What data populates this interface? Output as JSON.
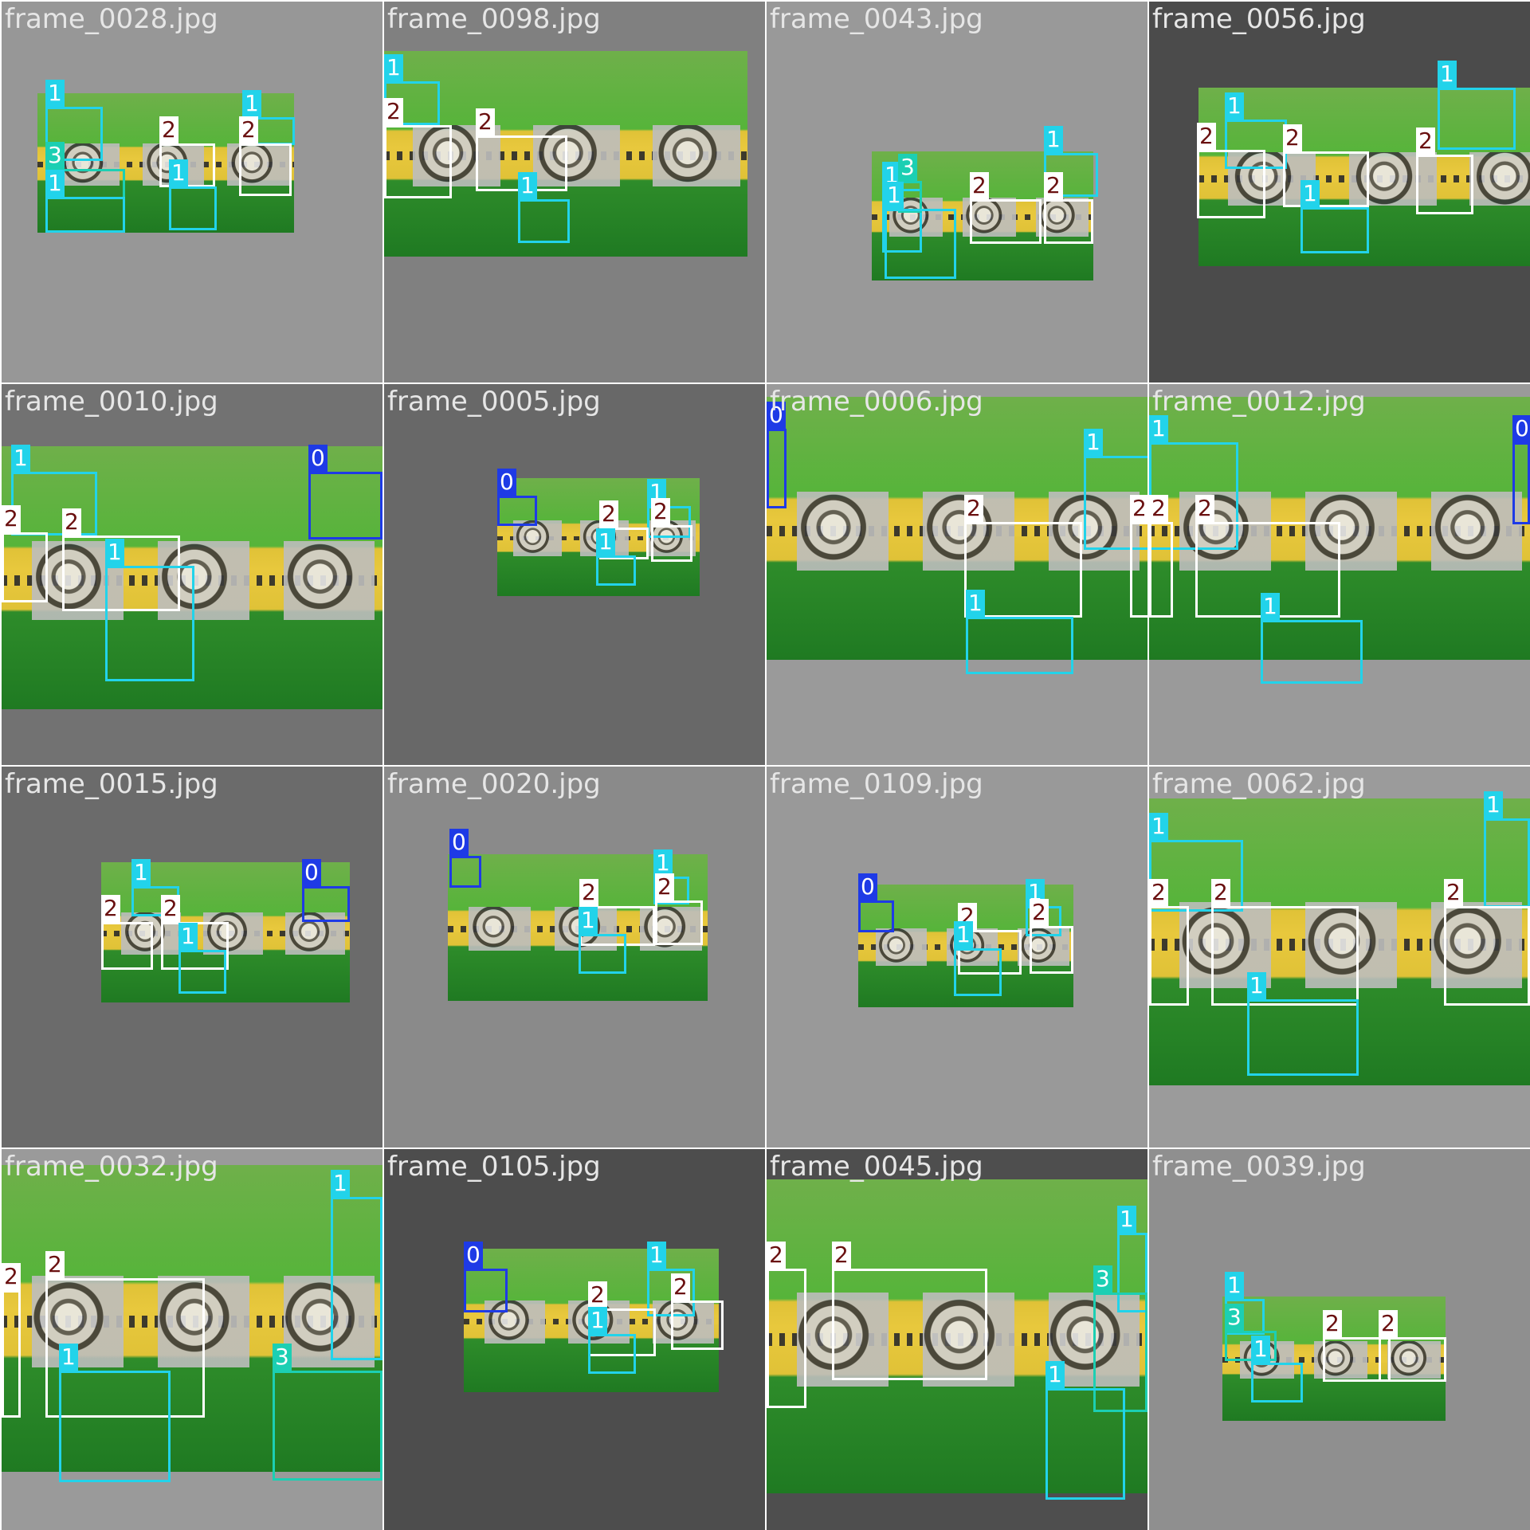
{
  "colors": {
    "class_0": "#1e3ae6",
    "class_1": "#22d3ea",
    "class_2": "#ffffff",
    "class_3": "#1ccfb3",
    "label_2_text": "#6a1010"
  },
  "tiles": [
    {
      "title": "frame_0028.jpg",
      "bg": "#979797"
    },
    {
      "title": "frame_0098.jpg",
      "bg": "#808080"
    },
    {
      "title": "frame_0043.jpg",
      "bg": "#999999"
    },
    {
      "title": "frame_0056.jpg",
      "bg": "#4b4b4b"
    },
    {
      "title": "frame_0010.jpg",
      "bg": "#727272"
    },
    {
      "title": "frame_0005.jpg",
      "bg": "#686868"
    },
    {
      "title": "frame_0006.jpg",
      "bg": "#9a9a9a"
    },
    {
      "title": "frame_0012.jpg",
      "bg": "#9a9a9a"
    },
    {
      "title": "frame_0015.jpg",
      "bg": "#6b6b6b"
    },
    {
      "title": "frame_0020.jpg",
      "bg": "#8a8a8a"
    },
    {
      "title": "frame_0109.jpg",
      "bg": "#999999"
    },
    {
      "title": "frame_0062.jpg",
      "bg": "#9b9b9b"
    },
    {
      "title": "frame_0032.jpg",
      "bg": "#9a9a9a"
    },
    {
      "title": "frame_0105.jpg",
      "bg": "#4d4d4d"
    },
    {
      "title": "frame_0045.jpg",
      "bg": "#4e4e4e"
    },
    {
      "title": "frame_0039.jpg",
      "bg": "#8f8f8f"
    }
  ]
}
